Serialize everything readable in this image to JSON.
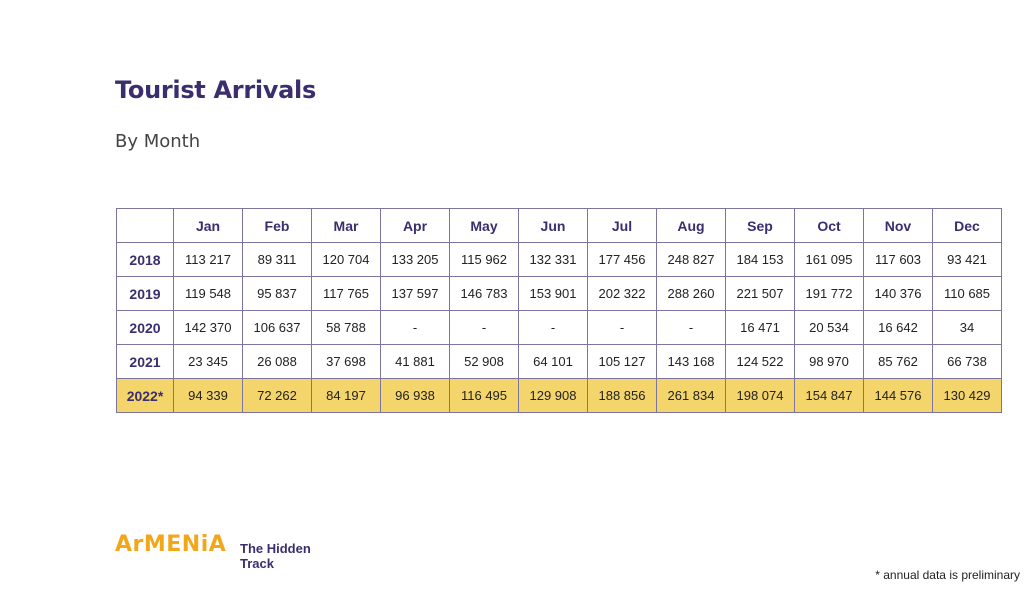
{
  "header": {
    "title": "Tourist Arrivals",
    "subtitle": "By Month"
  },
  "table": {
    "columns": [
      "Jan",
      "Feb",
      "Mar",
      "Apr",
      "May",
      "Jun",
      "Jul",
      "Aug",
      "Sep",
      "Oct",
      "Nov",
      "Dec"
    ],
    "rows": [
      {
        "label": "2018",
        "values": [
          "113 217",
          "89 311",
          "120 704",
          "133 205",
          "115 962",
          "132 331",
          "177 456",
          "248 827",
          "184 153",
          "161 095",
          "117 603",
          "93 421"
        ]
      },
      {
        "label": "2019",
        "values": [
          "119 548",
          "95 837",
          "117 765",
          "137 597",
          "146 783",
          "153 901",
          "202 322",
          "288 260",
          "221 507",
          "191 772",
          "140 376",
          "110 685"
        ]
      },
      {
        "label": "2020",
        "values": [
          "142 370",
          "106 637",
          "58 788",
          "-",
          "-",
          "-",
          "-",
          "-",
          "16 471",
          "20 534",
          "16 642",
          "34"
        ]
      },
      {
        "label": "2021",
        "values": [
          "23 345",
          "26 088",
          "37 698",
          "41 881",
          "52 908",
          "64 101",
          "105 127",
          "143 168",
          "124 522",
          "98 970",
          "85 762",
          "66 738"
        ]
      },
      {
        "label": "2022*",
        "values": [
          "94 339",
          "72 262",
          "84 197",
          "96 938",
          "116 495",
          "129 908",
          "188 856",
          "261 834",
          "198 074",
          "154 847",
          "144 576",
          "130 429"
        ]
      }
    ]
  },
  "footer": {
    "brand": "ArMENiA",
    "tagline": [
      "The Hidden",
      "Track"
    ],
    "note": "* annual data is preliminary"
  }
}
